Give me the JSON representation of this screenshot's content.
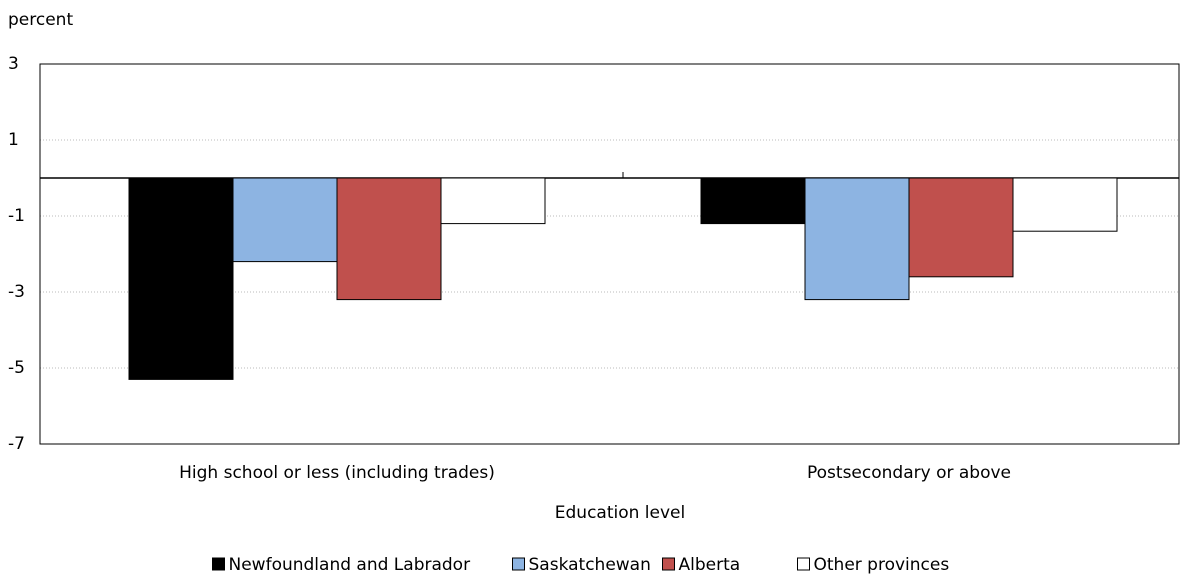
{
  "chart_data": {
    "type": "bar",
    "y_label": "percent",
    "x_label": "Education level",
    "categories": [
      "High school or less (including trades)",
      "Postsecondary or above"
    ],
    "series": [
      {
        "name": "Newfoundland and Labrador",
        "color": "#000000",
        "values": [
          -5.3,
          -1.2
        ]
      },
      {
        "name": "Saskatchewan",
        "color": "#8db4e2",
        "values": [
          -2.2,
          -3.2
        ]
      },
      {
        "name": "Alberta",
        "color": "#c0504d",
        "values": [
          -3.2,
          -2.6
        ]
      },
      {
        "name": "Other provinces",
        "color": "#ffffff",
        "values": [
          -1.2,
          -1.4
        ]
      }
    ],
    "ylim": [
      -7,
      3
    ],
    "yticks": [
      3,
      1,
      -1,
      -3,
      -5,
      -7
    ],
    "grid": true,
    "legend": "bottom"
  }
}
